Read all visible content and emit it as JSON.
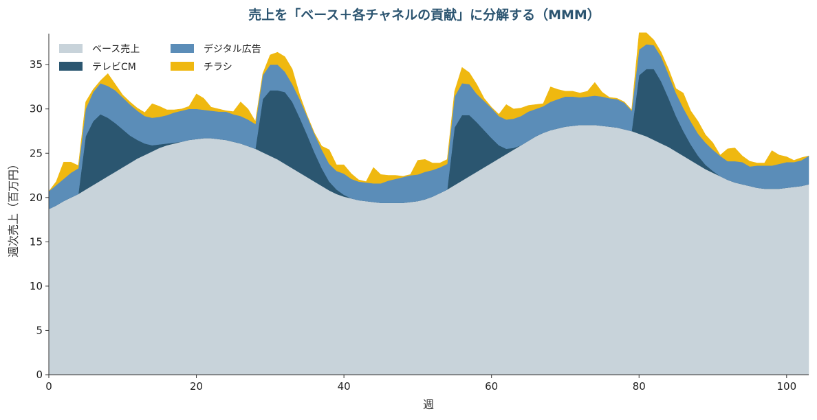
{
  "chart_data": {
    "type": "area",
    "stacked": true,
    "title": "売上を「ベース＋各チャネルの貢献」に分解する（MMM）",
    "xlabel": "週",
    "ylabel": "週次売上（百万円）",
    "xlim": [
      0,
      103
    ],
    "ylim": [
      0,
      38.5
    ],
    "xticks": [
      0,
      20,
      40,
      60,
      80,
      100
    ],
    "yticks": [
      0,
      5,
      10,
      15,
      20,
      25,
      30,
      35
    ],
    "grid": false,
    "legend_position": "top-left",
    "x": [
      0,
      1,
      2,
      3,
      4,
      5,
      6,
      7,
      8,
      9,
      10,
      11,
      12,
      13,
      14,
      15,
      16,
      17,
      18,
      19,
      20,
      21,
      22,
      23,
      24,
      25,
      26,
      27,
      28,
      29,
      30,
      31,
      32,
      33,
      34,
      35,
      36,
      37,
      38,
      39,
      40,
      41,
      42,
      43,
      44,
      45,
      46,
      47,
      48,
      49,
      50,
      51,
      52,
      53,
      54,
      55,
      56,
      57,
      58,
      59,
      60,
      61,
      62,
      63,
      64,
      65,
      66,
      67,
      68,
      69,
      70,
      71,
      72,
      73,
      74,
      75,
      76,
      77,
      78,
      79,
      80,
      81,
      82,
      83,
      84,
      85,
      86,
      87,
      88,
      89,
      90,
      91,
      92,
      93,
      94,
      95,
      96,
      97,
      98,
      99,
      100,
      101,
      102,
      103
    ],
    "series": [
      {
        "name": "ベース売上",
        "color": "#c8d3da",
        "values": [
          18.7,
          19.1,
          19.6,
          20.0,
          20.4,
          20.9,
          21.4,
          21.9,
          22.4,
          22.9,
          23.4,
          23.9,
          24.4,
          24.8,
          25.2,
          25.6,
          25.9,
          26.1,
          26.3,
          26.5,
          26.6,
          26.7,
          26.7,
          26.6,
          26.5,
          26.3,
          26.1,
          25.8,
          25.5,
          25.1,
          24.7,
          24.3,
          23.8,
          23.3,
          22.8,
          22.3,
          21.8,
          21.3,
          20.8,
          20.4,
          20.1,
          19.9,
          19.7,
          19.6,
          19.5,
          19.4,
          19.4,
          19.4,
          19.4,
          19.5,
          19.6,
          19.8,
          20.1,
          20.5,
          20.9,
          21.4,
          21.9,
          22.4,
          22.9,
          23.4,
          23.9,
          24.4,
          24.9,
          25.4,
          25.9,
          26.4,
          26.9,
          27.3,
          27.6,
          27.8,
          28.0,
          28.1,
          28.2,
          28.2,
          28.2,
          28.1,
          28.0,
          27.9,
          27.7,
          27.5,
          27.2,
          26.9,
          26.5,
          26.1,
          25.7,
          25.2,
          24.7,
          24.2,
          23.7,
          23.2,
          22.8,
          22.4,
          22.0,
          21.7,
          21.5,
          21.3,
          21.1,
          21.0,
          21.0,
          21.0,
          21.1,
          21.2,
          21.3,
          21.5
        ]
      },
      {
        "name": "テレビCM",
        "color": "#2b5670",
        "values": [
          0,
          0,
          0,
          0,
          0,
          6.0,
          7.2,
          7.5,
          6.6,
          5.5,
          4.3,
          3.1,
          2.1,
          1.3,
          0.7,
          0.4,
          0.2,
          0.1,
          0,
          0,
          0,
          0,
          0,
          0,
          0,
          0,
          0,
          0,
          0,
          6.0,
          7.4,
          7.8,
          8.1,
          7.5,
          6.2,
          4.8,
          3.3,
          2.0,
          1.0,
          0.5,
          0.2,
          0,
          0,
          0,
          0,
          0,
          0,
          0,
          0,
          0,
          0,
          0,
          0,
          0,
          0,
          6.5,
          7.4,
          6.9,
          5.6,
          4.2,
          2.8,
          1.5,
          0.6,
          0.2,
          0,
          0,
          0,
          0,
          0,
          0,
          0,
          0,
          0,
          0,
          0,
          0,
          0,
          0,
          0,
          0,
          6.6,
          7.6,
          8.0,
          7.0,
          5.5,
          4.0,
          2.8,
          1.8,
          1.0,
          0.5,
          0.2,
          0,
          0,
          0,
          0,
          0,
          0,
          0,
          0,
          0,
          0,
          0,
          0,
          0
        ]
      },
      {
        "name": "デジタル広告",
        "color": "#5b8db8",
        "values": [
          2.0,
          2.3,
          2.5,
          2.8,
          2.9,
          3.1,
          3.3,
          3.5,
          3.6,
          3.7,
          3.6,
          3.5,
          3.3,
          3.1,
          3.1,
          3.1,
          3.2,
          3.4,
          3.5,
          3.5,
          3.4,
          3.2,
          3.1,
          3.1,
          3.2,
          3.1,
          3.1,
          3.0,
          2.8,
          2.7,
          2.9,
          2.9,
          2.3,
          2.0,
          2.1,
          2.1,
          2.1,
          2.1,
          2.0,
          2.1,
          2.4,
          2.2,
          2.1,
          2.1,
          2.1,
          2.2,
          2.5,
          2.7,
          2.9,
          3.0,
          3.0,
          3.1,
          3.0,
          2.9,
          2.9,
          3.5,
          3.6,
          3.5,
          3.2,
          3.3,
          3.4,
          3.3,
          3.3,
          3.3,
          3.3,
          3.3,
          3.1,
          3.0,
          3.2,
          3.3,
          3.4,
          3.3,
          3.1,
          3.2,
          3.3,
          3.3,
          3.2,
          3.2,
          3.0,
          2.3,
          2.9,
          2.8,
          2.7,
          2.8,
          2.7,
          2.6,
          2.6,
          2.6,
          2.5,
          2.5,
          2.4,
          2.3,
          2.1,
          2.4,
          2.5,
          2.2,
          2.5,
          2.6,
          2.6,
          2.8,
          2.9,
          2.8,
          2.9,
          3.2
        ]
      },
      {
        "name": "チラシ",
        "color": "#efb810",
        "values": [
          0,
          0.4,
          1.9,
          1.2,
          0.3,
          0.8,
          0.3,
          0.3,
          1.4,
          0.7,
          0.3,
          0.3,
          0.3,
          0.4,
          1.6,
          1.2,
          0.6,
          0.3,
          0.2,
          0.3,
          1.7,
          1.3,
          0.4,
          0.3,
          0.1,
          0.3,
          1.6,
          1.2,
          0.3,
          0.2,
          1.1,
          1.4,
          1.7,
          1.7,
          0.5,
          0.1,
          0.1,
          0.4,
          1.6,
          0.7,
          1.0,
          0.6,
          0.2,
          0.1,
          1.8,
          1.0,
          0.6,
          0.4,
          0.1,
          0.1,
          1.6,
          1.4,
          0.8,
          0.5,
          0.5,
          0.6,
          1.8,
          1.3,
          1.1,
          0.3,
          0.1,
          0.2,
          1.7,
          1.1,
          0.9,
          0.7,
          0.5,
          0.3,
          1.7,
          1.1,
          0.6,
          0.6,
          0.5,
          0.6,
          1.5,
          0.5,
          0.1,
          0.1,
          0.1,
          0.1,
          1.9,
          1.3,
          0.6,
          0.5,
          0.6,
          0.5,
          1.7,
          1.2,
          1.4,
          0.9,
          0.8,
          0.1,
          1.4,
          1.5,
          0.7,
          0.6,
          0.3,
          0.3,
          1.7,
          1.0,
          0.6,
          0.2,
          0.3,
          0
        ]
      }
    ]
  }
}
